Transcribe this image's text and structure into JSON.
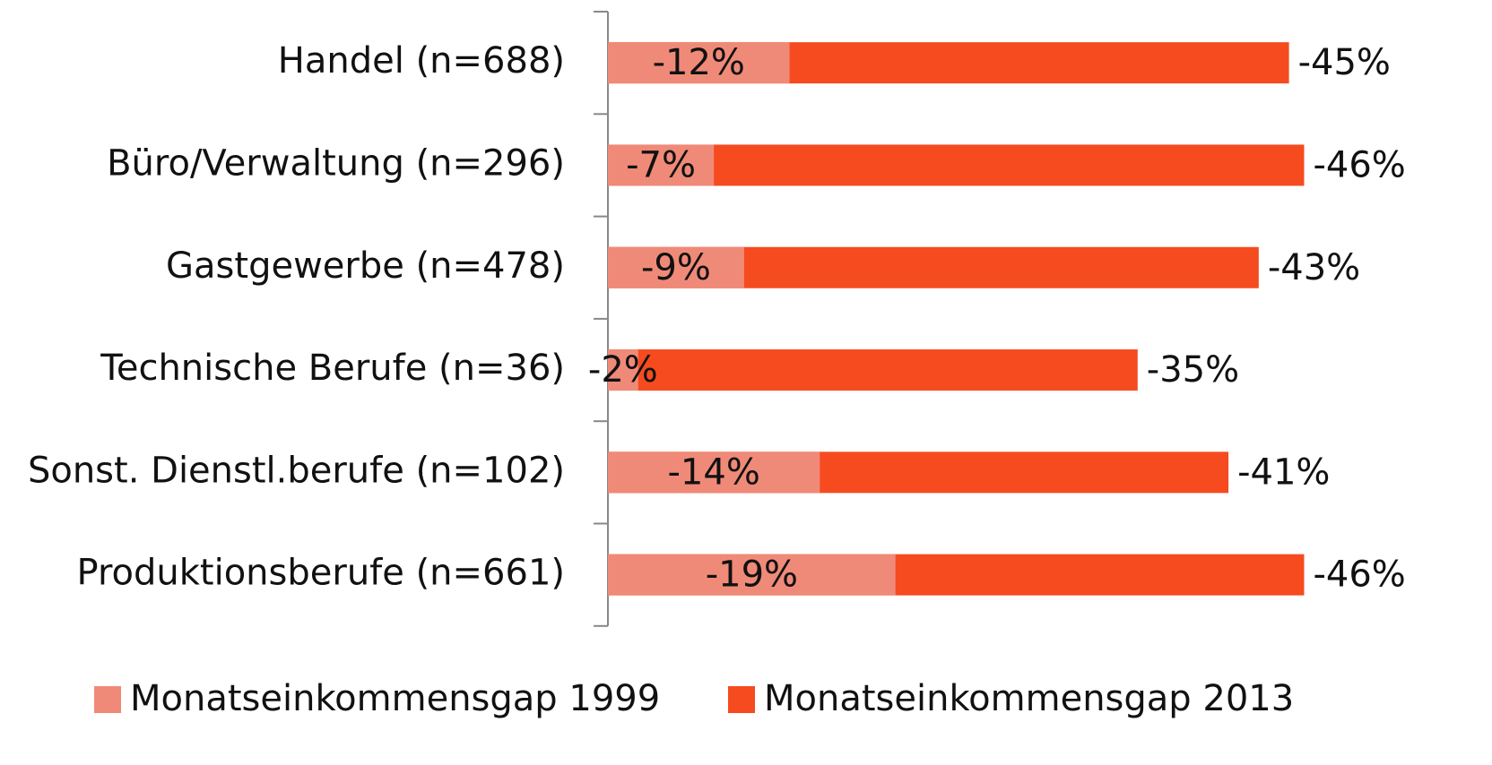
{
  "chart_data": {
    "type": "bar",
    "orientation": "horizontal",
    "categories": [
      "Handel (n=688)",
      "Büro/Verwaltung (n=296)",
      "Gastgewerbe (n=478)",
      "Technische Berufe (n=36)",
      "Sonst. Dienstl.berufe (n=102)",
      "Produktionsberufe (n=661)"
    ],
    "series": [
      {
        "name": "Monatseinkommensgap 1999",
        "color": "#f08a78",
        "values": [
          -12,
          -7,
          -9,
          -2,
          -14,
          -19
        ],
        "value_labels": [
          "-12%",
          "-7%",
          "-9%",
          "-2%",
          "-14%",
          "-19%"
        ]
      },
      {
        "name": "Monatseinkommensgap 2013",
        "color": "#f54b1f",
        "values": [
          -45,
          -46,
          -43,
          -35,
          -41,
          -46
        ],
        "value_labels": [
          "-45%",
          "-46%",
          "-43%",
          "-35%",
          "-41%",
          "-46%"
        ]
      }
    ],
    "legend": "bottom"
  }
}
